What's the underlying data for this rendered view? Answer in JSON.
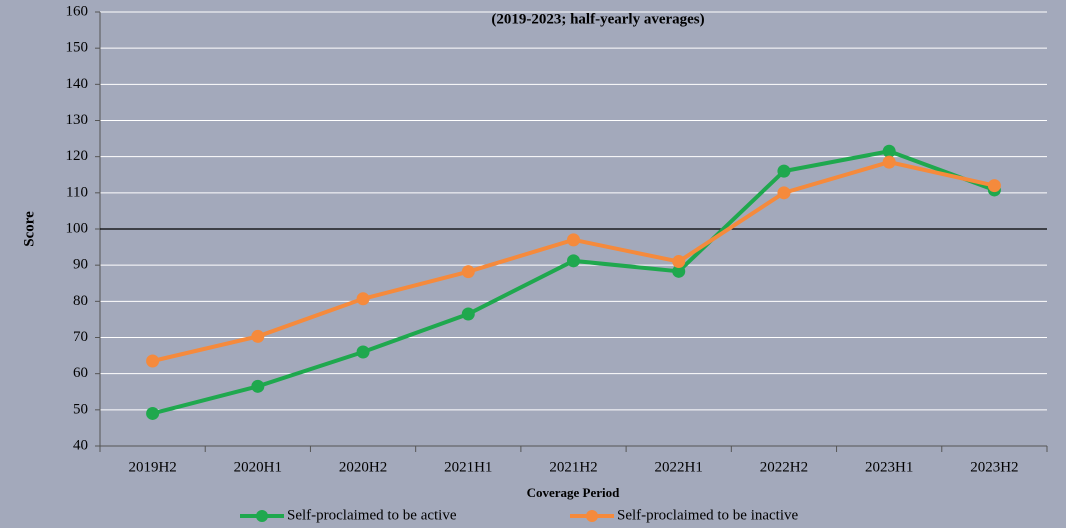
{
  "chart_data": {
    "type": "line",
    "subtitle": "(2019-2023; half-yearly averages)",
    "y_label": "Score",
    "x_label": "Coverage Period",
    "categories": [
      "2019H2",
      "2020H1",
      "2020H2",
      "2021H1",
      "2021H2",
      "2022H1",
      "2022H2",
      "2023H1",
      "2023H2"
    ],
    "series": [
      {
        "name": "Self-proclaimed to be active",
        "color": "#1fa84e",
        "values": [
          49,
          56.5,
          66,
          76.5,
          91.2,
          88.3,
          116,
          121.5,
          110.8
        ]
      },
      {
        "name": "Self-proclaimed to be inactive",
        "color": "#f58a3c",
        "values": [
          63.5,
          70.3,
          80.7,
          88.2,
          97,
          91,
          110,
          118.5,
          112
        ]
      }
    ],
    "ylim": [
      40,
      160
    ],
    "yticks": [
      40,
      50,
      60,
      70,
      80,
      90,
      100,
      110,
      120,
      130,
      140,
      150,
      160
    ],
    "reference_line": 100,
    "grid": true
  }
}
